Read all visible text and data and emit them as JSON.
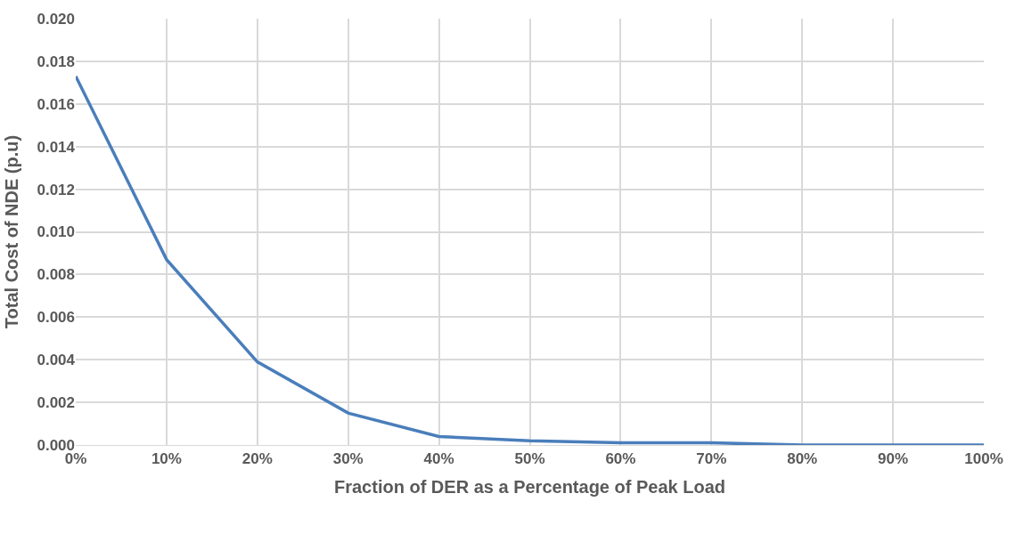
{
  "chart_data": {
    "type": "line",
    "xlabel": "Fraction of DER as a Percentage of Peak Load",
    "ylabel": "Total Cost of NDE (p.u)",
    "x": [
      0,
      10,
      20,
      30,
      40,
      50,
      60,
      70,
      80,
      90,
      100
    ],
    "series": [
      {
        "color": "#4a7ebb",
        "values": [
          0.0173,
          0.0087,
          0.0039,
          0.0015,
          0.0004,
          0.0002,
          0.0001,
          0.0001,
          0.0,
          0.0,
          0.0
        ]
      }
    ],
    "xlim": [
      0,
      100
    ],
    "xticks": [
      {
        "value": 0,
        "label": "0%"
      },
      {
        "value": 10,
        "label": "10%"
      },
      {
        "value": 20,
        "label": "20%"
      },
      {
        "value": 30,
        "label": "30%"
      },
      {
        "value": 40,
        "label": "40%"
      },
      {
        "value": 50,
        "label": "50%"
      },
      {
        "value": 60,
        "label": "60%"
      },
      {
        "value": 70,
        "label": "70%"
      },
      {
        "value": 80,
        "label": "80%"
      },
      {
        "value": 90,
        "label": "90%"
      },
      {
        "value": 100,
        "label": "100%"
      }
    ],
    "ylim": [
      0,
      0.02
    ],
    "yticks": [
      {
        "value": 0,
        "label": "0.000"
      },
      {
        "value": 0.002,
        "label": "0.002"
      },
      {
        "value": 0.004,
        "label": "0.004"
      },
      {
        "value": 0.006,
        "label": "0.006"
      },
      {
        "value": 0.008,
        "label": "0.008"
      },
      {
        "value": 0.01,
        "label": "0.010"
      },
      {
        "value": 0.012,
        "label": "0.012"
      },
      {
        "value": 0.014,
        "label": "0.014"
      },
      {
        "value": 0.016,
        "label": "0.016"
      },
      {
        "value": 0.018,
        "label": "0.018"
      },
      {
        "value": 0.02,
        "label": "0.020"
      }
    ],
    "grid": true,
    "marker": "none",
    "line_style": "solid"
  }
}
